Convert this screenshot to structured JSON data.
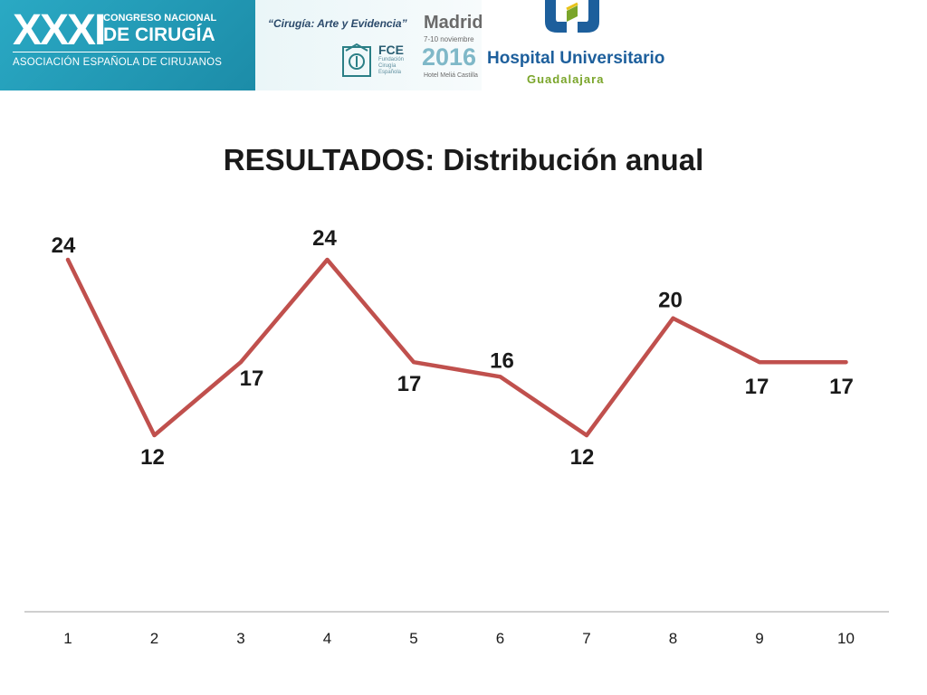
{
  "banner": {
    "congress_roman": "XXXI",
    "congress_line1": "CONGRESO NACIONAL",
    "congress_line2": "DE CIRUGÍA",
    "congress_line3": "ASOCIACIÓN ESPAÑOLA DE CIRUJANOS",
    "motto": "“Cirugía: Arte y Evidencia”",
    "fce_name": "FCE",
    "fce_subtitle": "Fundación Cirugía Española",
    "city": "Madrid",
    "dates": "7-10 noviembre",
    "year": "2016",
    "venue": "Hotel Meliá Castilla",
    "hospital_name": "Hospital Universitario",
    "hospital_city": "Guadalajara",
    "colors": {
      "teal": "#2aa9c4",
      "hospital_blue": "#1d5f9c",
      "hospital_green": "#7aa52a",
      "hospital_yellow": "#e8c21a"
    }
  },
  "chart_data": {
    "type": "line",
    "title": "RESULTADOS: Distribución anual",
    "categories": [
      "1",
      "2",
      "3",
      "4",
      "5",
      "6",
      "7",
      "8",
      "9",
      "10"
    ],
    "series": [
      {
        "values": [
          24,
          12,
          17,
          24,
          17,
          16,
          12,
          20,
          17,
          17
        ],
        "color": "#c0504d"
      }
    ],
    "data_labels": true,
    "ylim": [
      0,
      30
    ],
    "grid": false,
    "legend": "none",
    "axis_color": "#bfbfbf"
  }
}
